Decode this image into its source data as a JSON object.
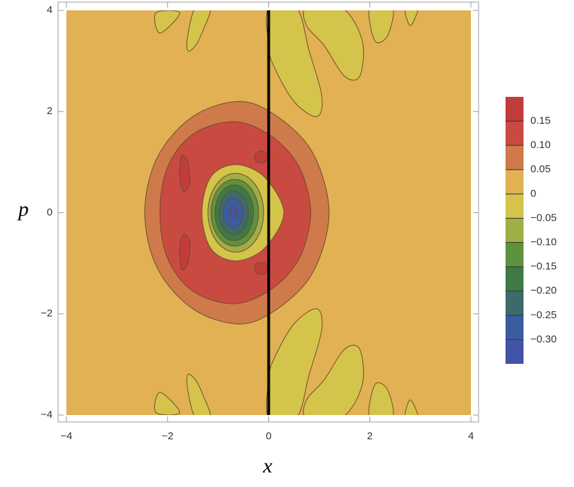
{
  "chart_data": {
    "type": "contour",
    "xlabel": "x",
    "ylabel": "p",
    "xlim": [
      -4,
      4
    ],
    "ylim": [
      -4,
      4
    ],
    "xticks": [
      {
        "value": -4,
        "label": "−4"
      },
      {
        "value": -2,
        "label": "−2"
      },
      0,
      2,
      4
    ],
    "yticks": [
      {
        "value": -4,
        "label": "−4"
      },
      {
        "value": -2,
        "label": "−2"
      },
      0,
      2,
      4
    ],
    "vline": 0,
    "colorbar": {
      "lim": [
        -0.35,
        0.2
      ],
      "ticks": [
        0.15,
        {
          "value": 0.1,
          "label": "0.10"
        },
        0.05,
        0,
        {
          "value": -0.05,
          "label": "−0.05"
        },
        {
          "value": -0.1,
          "label": "−0.10"
        },
        {
          "value": -0.15,
          "label": "−0.15"
        },
        {
          "value": -0.2,
          "label": "−0.20"
        },
        {
          "value": -0.25,
          "label": "−0.25"
        },
        {
          "value": -0.3,
          "label": "−0.30"
        }
      ],
      "colors": [
        "#c23c3b",
        "#c94a41",
        "#cf7a4b",
        "#e1b153",
        "#d4c44c",
        "#9fae45",
        "#5f923e",
        "#3f7a45",
        "#3e6a6c",
        "#3c5ca0",
        "#4254a8"
      ]
    }
  }
}
